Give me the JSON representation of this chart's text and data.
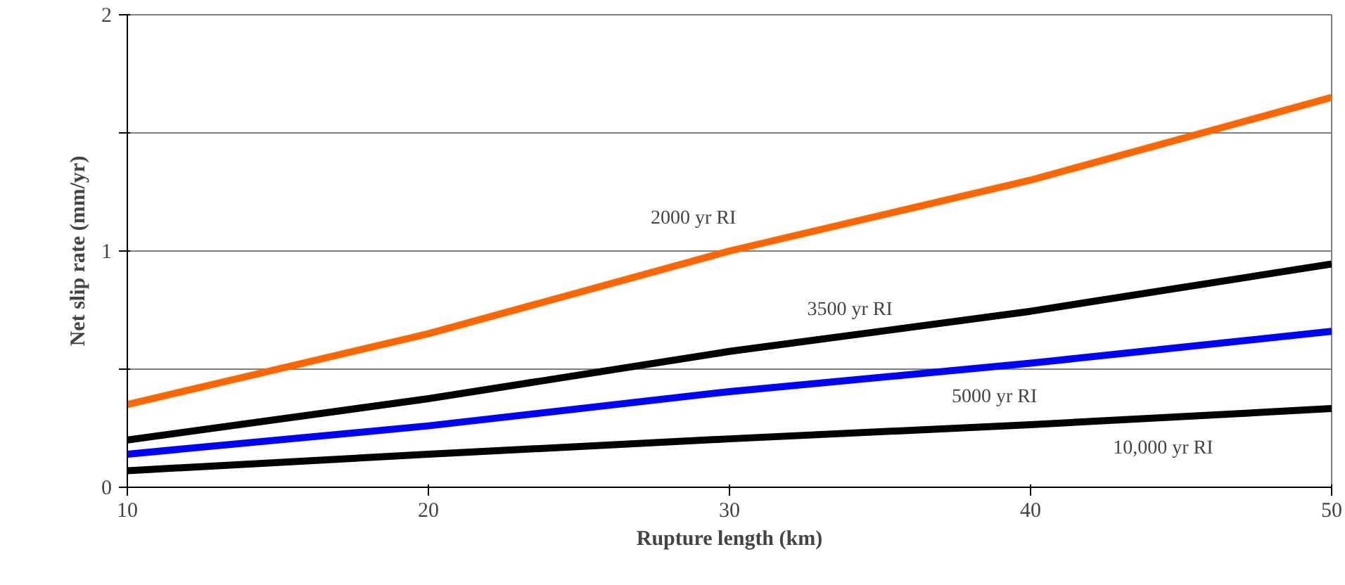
{
  "chart_data": {
    "type": "line",
    "xlabel": "Rupture length (km)",
    "ylabel": "Net slip rate (mm/yr)",
    "x": [
      10,
      20,
      30,
      40,
      50
    ],
    "series": [
      {
        "name": "2000 yr RI",
        "color": "#ff6600",
        "values": [
          0.35,
          0.65,
          1.0,
          1.3,
          1.65
        ]
      },
      {
        "name": "3500 yr RI",
        "color": "#000000",
        "values": [
          0.2,
          0.375,
          0.575,
          0.745,
          0.945
        ]
      },
      {
        "name": "5000 yr RI",
        "color": "#0000ff",
        "values": [
          0.14,
          0.26,
          0.405,
          0.525,
          0.66
        ]
      },
      {
        "name": "10,000 yr RI",
        "color": "#000000",
        "values": [
          0.07,
          0.14,
          0.205,
          0.265,
          0.333
        ]
      }
    ],
    "xlim": [
      10,
      50
    ],
    "ylim": [
      0,
      2
    ],
    "xticks": [
      10,
      20,
      30,
      40,
      50
    ],
    "yticks": [
      0,
      {
        "value": 0.5,
        "label": null
      },
      1,
      {
        "value": 1.5,
        "label": null
      },
      2
    ],
    "grid": "y",
    "marker": "none",
    "line_style": "solid"
  }
}
